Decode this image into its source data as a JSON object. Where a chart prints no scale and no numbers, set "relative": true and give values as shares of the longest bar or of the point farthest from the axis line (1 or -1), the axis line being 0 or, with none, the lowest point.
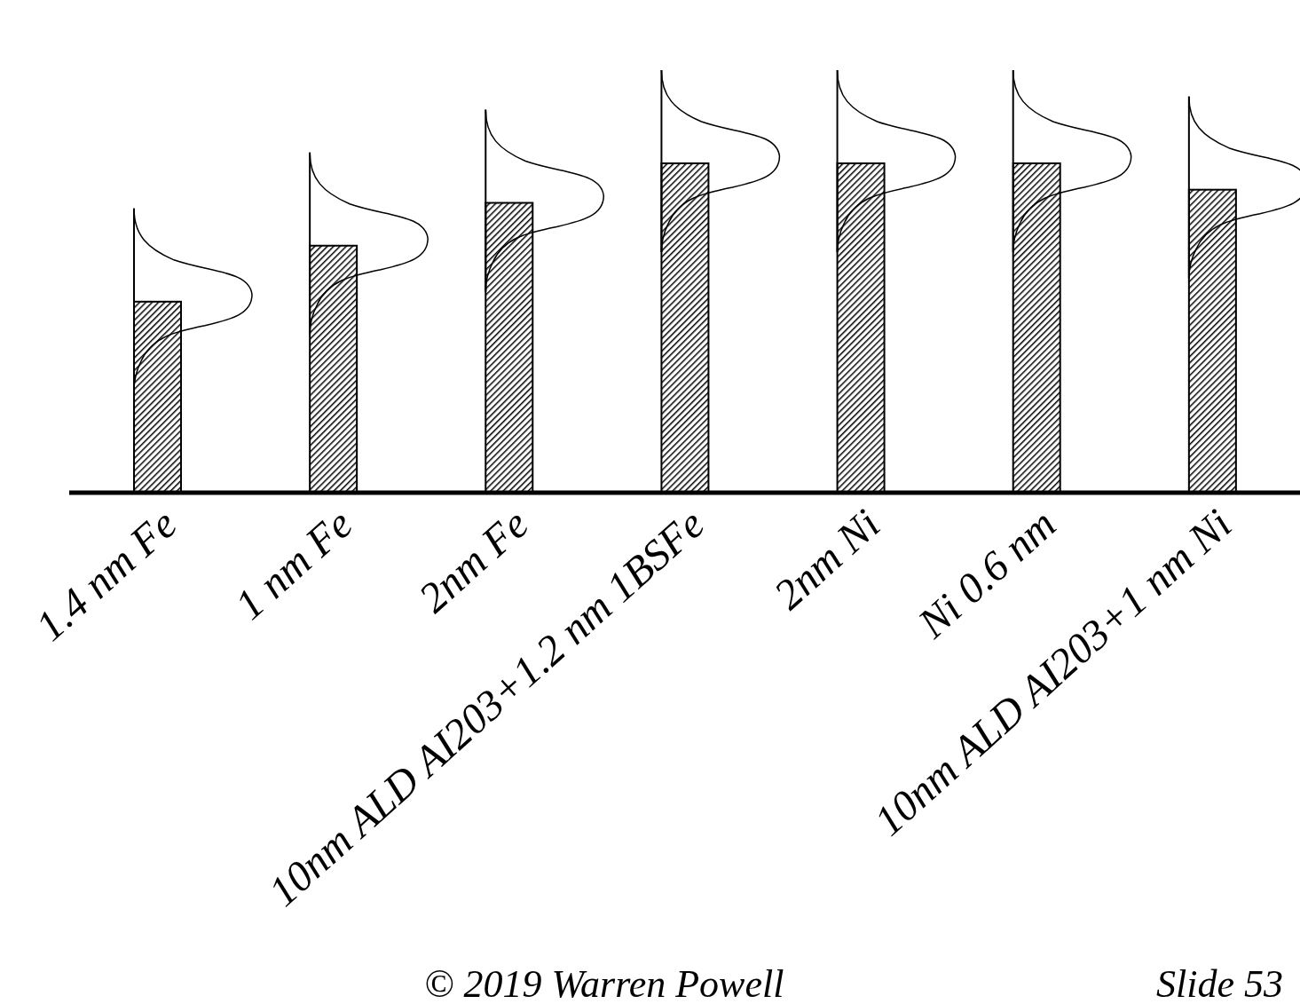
{
  "chart_data": {
    "type": "bar",
    "relative": true,
    "categories": [
      "1.4 nm Fe",
      "1 nm Fe",
      "2nm Fe",
      "10nm ALD AI203+1.2 nm 1BSFe",
      "2nm Ni",
      "Ni 0.6 nm",
      "10nm ALD AI203+1 nm Ni"
    ],
    "values": [
      0.58,
      0.75,
      0.88,
      1,
      1,
      1,
      0.92
    ],
    "color": "#000000",
    "annotations": [
      "© 2019 Warren Powell",
      "Slide 53"
    ]
  }
}
